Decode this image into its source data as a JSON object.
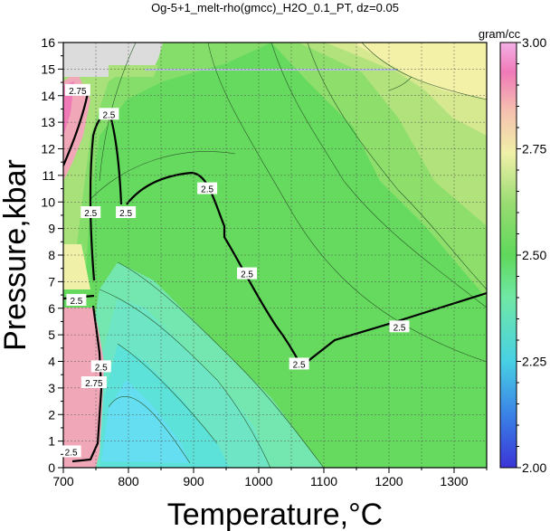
{
  "chart_data": {
    "type": "heatmap",
    "title": "Og-5+1_melt-rho(gmcc)_H2O_0.1_PT, dz=0.05",
    "xlabel": "Temperature,°C",
    "ylabel": "Pressure,kbar",
    "xlim": [
      700,
      1350
    ],
    "ylim": [
      0,
      16
    ],
    "x_ticks": [
      "700",
      "800",
      "900",
      "1000",
      "1100",
      "1200",
      "1300"
    ],
    "y_ticks": [
      "0",
      "1",
      "2",
      "3",
      "4",
      "5",
      "6",
      "7",
      "8",
      "9",
      "10",
      "11",
      "12",
      "13",
      "14",
      "15",
      "16"
    ],
    "grid": true,
    "colorbar": {
      "title": "gram/cc",
      "range": [
        2.0,
        3.0
      ],
      "ticks": [
        "2.00",
        "2.25",
        "2.50",
        "2.75",
        "3.00"
      ],
      "colors": [
        "#3b35d6",
        "#3aa3e6",
        "#52e2d6",
        "#7ee87a",
        "#5fd85a",
        "#a8e07a",
        "#f2f0a6",
        "#f6c7b0",
        "#f07ab8",
        "#f3a6e3"
      ]
    },
    "contour_labels": [
      {
        "text": "2.75",
        "x": 722,
        "y": 14.2
      },
      {
        "text": "2.5",
        "x": 770,
        "y": 13.3
      },
      {
        "text": "2.5",
        "x": 742,
        "y": 9.6
      },
      {
        "text": "2.5",
        "x": 796,
        "y": 9.6
      },
      {
        "text": "2.5",
        "x": 921,
        "y": 10.5
      },
      {
        "text": "2.5",
        "x": 982,
        "y": 7.3
      },
      {
        "text": "2.5",
        "x": 1062,
        "y": 3.9
      },
      {
        "text": "2.5",
        "x": 1216,
        "y": 5.3
      },
      {
        "text": "2.5",
        "x": 720,
        "y": 6.3
      },
      {
        "text": "2.5",
        "x": 758,
        "y": 3.8
      },
      {
        "text": "2.75",
        "x": 747,
        "y": 3.2
      },
      {
        "text": "2.5",
        "x": 712,
        "y": 0.6
      }
    ]
  }
}
